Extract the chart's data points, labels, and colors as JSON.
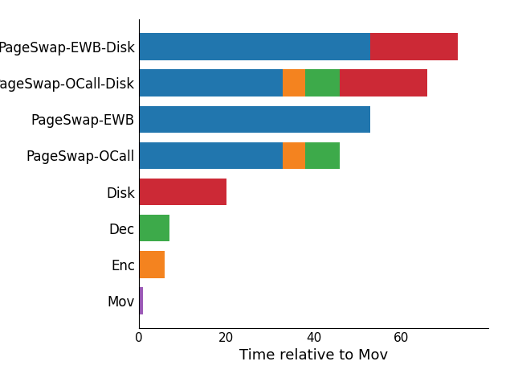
{
  "categories": [
    "Mov",
    "Enc",
    "Dec",
    "Disk",
    "PageSwap-OCall",
    "PageSwap-EWB",
    "PageSwap-OCall-Disk",
    "PageSwap-EWB-Disk"
  ],
  "segments": {
    "blue": [
      0,
      0,
      0,
      0,
      33.0,
      53.0,
      33.0,
      53.0
    ],
    "orange": [
      0,
      6.0,
      0,
      0,
      5.0,
      0,
      5.0,
      0
    ],
    "green": [
      0,
      0,
      7.0,
      0,
      8.0,
      0,
      8.0,
      0
    ],
    "red": [
      0,
      0,
      0,
      20.0,
      0,
      0,
      20.0,
      20.0
    ],
    "purple": [
      1.0,
      0,
      0,
      0,
      0,
      0,
      0,
      0
    ]
  },
  "colors": {
    "blue": "#2176AE",
    "orange": "#F4831F",
    "green": "#3DAA4A",
    "red": "#CC2936",
    "purple": "#9B59B6"
  },
  "xlabel": "Time relative to Mov",
  "xlim": [
    0,
    80
  ],
  "xticks": [
    0,
    20,
    40,
    60
  ],
  "bar_height": 0.75,
  "figsize": [
    6.4,
    4.8
  ],
  "dpi": 100
}
